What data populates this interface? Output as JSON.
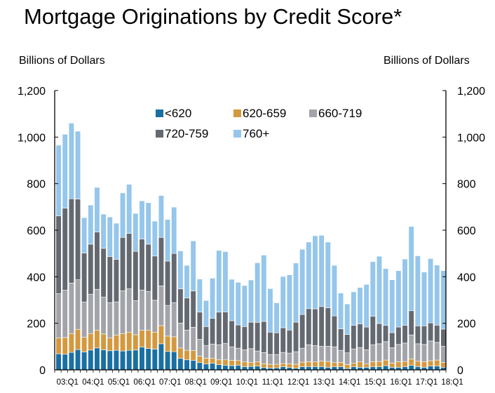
{
  "chart_data": {
    "type": "bar",
    "stacked": true,
    "title": "Mortgage Originations by Credit Score*",
    "ylabel_left": "Billions of Dollars",
    "ylabel_right": "Billions of Dollars",
    "ylim": [
      0,
      1200
    ],
    "yticks": [
      "0",
      "200",
      "400",
      "600",
      "800",
      "1,000",
      "1,200"
    ],
    "ytick_values": [
      0,
      200,
      400,
      600,
      800,
      1000,
      1200
    ],
    "xtick_labels": [
      "03:Q1",
      "04:Q1",
      "05:Q1",
      "06:Q1",
      "07:Q1",
      "08:Q1",
      "09:Q1",
      "10:Q1",
      "11:Q1",
      "12:Q1",
      "13:Q1",
      "14:Q1",
      "15:Q1",
      "16:Q1",
      "17:Q1",
      "18:Q1"
    ],
    "legend_position": "top-center",
    "grid": false,
    "categories_count": 61,
    "series": [
      {
        "name": "<620",
        "color": "#1a6fa3",
        "values": [
          69,
          67,
          75,
          87,
          77,
          85,
          94,
          86,
          82,
          84,
          81,
          84,
          85,
          98,
          92,
          89,
          112,
          79,
          78,
          49,
          43,
          41,
          31,
          25,
          28,
          22,
          20,
          18,
          20,
          13,
          15,
          16,
          10,
          8,
          9,
          13,
          10,
          7,
          13,
          14,
          14,
          14,
          11,
          13,
          13,
          6,
          13,
          11,
          11,
          13,
          13,
          18,
          11,
          11,
          13,
          19,
          14,
          11,
          16,
          16,
          11
        ]
      },
      {
        "name": "620-659",
        "color": "#d4983f",
        "values": [
          68,
          72,
          81,
          87,
          63,
          71,
          76,
          68,
          55,
          65,
          75,
          78,
          66,
          72,
          78,
          73,
          78,
          66,
          64,
          45,
          41,
          42,
          28,
          25,
          21,
          21,
          23,
          23,
          20,
          21,
          16,
          18,
          16,
          16,
          15,
          14,
          16,
          17,
          20,
          21,
          20,
          24,
          25,
          18,
          19,
          17,
          15,
          23,
          14,
          22,
          23,
          24,
          18,
          24,
          23,
          28,
          23,
          24,
          23,
          26,
          21
        ]
      },
      {
        "name": "660-719",
        "color": "#a2a4a9",
        "values": [
          190,
          203,
          217,
          213,
          151,
          169,
          176,
          159,
          152,
          143,
          184,
          186,
          146,
          173,
          167,
          137,
          171,
          132,
          147,
          107,
          87,
          100,
          72,
          55,
          62,
          65,
          71,
          58,
          53,
          52,
          60,
          47,
          48,
          42,
          42,
          48,
          46,
          54,
          60,
          73,
          70,
          63,
          65,
          68,
          52,
          50,
          62,
          62,
          61,
          73,
          76,
          79,
          66,
          74,
          79,
          103,
          75,
          74,
          85,
          76,
          69
        ]
      },
      {
        "name": "720-759",
        "color": "#646971",
        "values": [
          335,
          353,
          362,
          347,
          211,
          215,
          246,
          209,
          198,
          183,
          229,
          238,
          212,
          219,
          203,
          190,
          208,
          190,
          211,
          147,
          138,
          156,
          117,
          81,
          110,
          140,
          135,
          112,
          100,
          100,
          114,
          123,
          134,
          96,
          93,
          106,
          99,
          127,
          145,
          155,
          158,
          171,
          166,
          133,
          92,
          79,
          101,
          101,
          98,
          122,
          87,
          70,
          65,
          75,
          76,
          104,
          77,
          80,
          78,
          74,
          74
        ]
      },
      {
        "name": "760+",
        "color": "#95c6eb",
        "values": [
          303,
          317,
          325,
          291,
          152,
          168,
          192,
          147,
          170,
          155,
          191,
          211,
          163,
          164,
          178,
          150,
          180,
          179,
          199,
          163,
          140,
          215,
          142,
          112,
          173,
          265,
          259,
          178,
          183,
          176,
          181,
          256,
          285,
          187,
          129,
          220,
          237,
          254,
          280,
          286,
          314,
          306,
          282,
          217,
          154,
          131,
          144,
          157,
          183,
          235,
          289,
          244,
          227,
          242,
          285,
          362,
          301,
          231,
          276,
          258,
          251
        ]
      }
    ]
  }
}
